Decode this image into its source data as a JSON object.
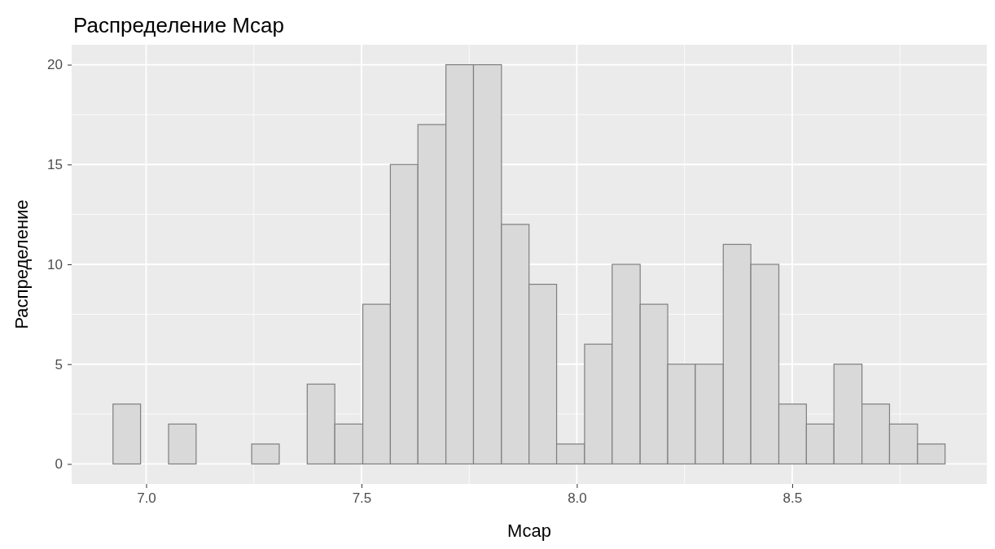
{
  "chart_data": {
    "type": "histogram",
    "title": "Распределение Mcap",
    "xlabel": "Mcap",
    "ylabel": "Распределение",
    "bins": [
      6.923,
      6.987,
      7.052,
      7.116,
      7.245,
      7.309,
      7.374,
      7.438,
      7.503,
      7.567,
      7.631,
      7.696,
      7.76,
      7.825,
      7.889,
      7.953,
      8.018,
      8.082,
      8.147,
      8.211,
      8.275,
      8.34,
      8.404,
      8.469,
      8.533,
      8.597,
      8.662,
      8.726,
      8.791,
      8.855
    ],
    "values": [
      3,
      0,
      2,
      0,
      1,
      0,
      4,
      2,
      8,
      15,
      17,
      20,
      20,
      12,
      9,
      1,
      6,
      10,
      8,
      5,
      5,
      11,
      10,
      3,
      2,
      5,
      3,
      2,
      1
    ],
    "color": "#d9d9d9",
    "xlim": [
      6.827,
      8.952
    ],
    "xticks": [
      {
        "value": 7,
        "label": "7.0"
      },
      7.5,
      {
        "value": 8,
        "label": "8.0"
      },
      8.5
    ],
    "ylim": [
      -1,
      21
    ],
    "yticks": [
      0,
      5,
      10,
      15,
      20
    ],
    "grid": true
  }
}
